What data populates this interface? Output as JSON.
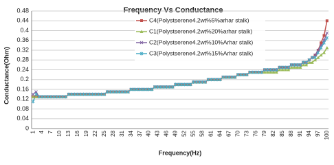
{
  "chart_data": {
    "type": "line",
    "title": "Frequency Vs Conductance",
    "x_label": "Frequency(Hz)",
    "y_label": "Conductance(Ohm)",
    "categories": [
      1,
      null,
      null,
      4,
      null,
      null,
      7,
      null,
      null,
      10,
      null,
      null,
      13,
      null,
      null,
      16,
      null,
      null,
      19,
      null,
      null,
      22,
      null,
      null,
      25,
      null,
      null,
      28,
      null,
      null,
      31,
      null,
      null,
      34,
      null,
      null,
      37,
      null,
      null,
      40,
      null,
      null,
      43,
      null,
      null,
      46,
      null,
      null,
      49,
      null,
      null,
      52,
      null,
      null,
      55,
      null,
      null,
      58,
      null,
      null,
      61,
      null,
      null,
      64,
      null,
      null,
      67,
      null,
      null,
      70,
      null,
      null,
      73,
      null,
      null,
      76,
      null,
      null,
      79,
      null,
      null,
      82,
      null,
      null,
      85,
      null,
      null,
      88,
      null,
      null,
      91,
      null,
      null,
      94,
      null,
      null,
      97,
      null,
      null,
      100
    ],
    "ylim": [
      0,
      0.48
    ],
    "yticks": [
      0,
      0.04,
      0.08,
      0.12,
      0.16,
      0.2,
      0.24,
      0.28,
      0.32,
      0.36,
      0.4,
      0.44,
      0.48
    ],
    "grid": true,
    "series": [
      {
        "name": "C4(Polystserene4.2wt%5%arhar stalk)",
        "color": "#c0504d",
        "marker": "square",
        "values": [
          0.13,
          0.13,
          0.13,
          0.13,
          0.13,
          0.13,
          0.13,
          0.13,
          0.13,
          0.13,
          0.13,
          0.13,
          0.14,
          0.14,
          0.14,
          0.14,
          0.14,
          0.14,
          0.14,
          0.14,
          0.14,
          0.14,
          0.14,
          0.14,
          0.14,
          0.15,
          0.15,
          0.15,
          0.15,
          0.15,
          0.15,
          0.15,
          0.15,
          0.16,
          0.16,
          0.16,
          0.16,
          0.16,
          0.16,
          0.16,
          0.16,
          0.17,
          0.17,
          0.17,
          0.17,
          0.17,
          0.17,
          0.17,
          0.18,
          0.18,
          0.18,
          0.18,
          0.18,
          0.18,
          0.19,
          0.19,
          0.19,
          0.19,
          0.19,
          0.2,
          0.2,
          0.2,
          0.2,
          0.2,
          0.21,
          0.21,
          0.21,
          0.21,
          0.21,
          0.22,
          0.22,
          0.22,
          0.22,
          0.23,
          0.23,
          0.23,
          0.23,
          0.23,
          0.24,
          0.24,
          0.24,
          0.24,
          0.24,
          0.25,
          0.25,
          0.25,
          0.25,
          0.26,
          0.26,
          0.26,
          0.26,
          0.27,
          0.27,
          0.28,
          0.29,
          0.3,
          0.32,
          0.35,
          0.38,
          0.44
        ]
      },
      {
        "name": "C1(Polystserene4.2wt%20%arhar stalk)",
        "color": "#9bbb59",
        "marker": "triangle",
        "values": [
          0.13,
          0.13,
          0.13,
          0.13,
          0.13,
          0.13,
          0.13,
          0.13,
          0.13,
          0.13,
          0.13,
          0.13,
          0.14,
          0.14,
          0.14,
          0.14,
          0.14,
          0.14,
          0.14,
          0.14,
          0.14,
          0.14,
          0.14,
          0.14,
          0.14,
          0.15,
          0.15,
          0.15,
          0.15,
          0.15,
          0.15,
          0.15,
          0.15,
          0.16,
          0.16,
          0.16,
          0.16,
          0.16,
          0.16,
          0.16,
          0.16,
          0.17,
          0.17,
          0.17,
          0.17,
          0.17,
          0.17,
          0.17,
          0.18,
          0.18,
          0.18,
          0.18,
          0.18,
          0.18,
          0.19,
          0.19,
          0.19,
          0.19,
          0.19,
          0.2,
          0.2,
          0.2,
          0.2,
          0.2,
          0.21,
          0.21,
          0.21,
          0.21,
          0.21,
          0.22,
          0.22,
          0.22,
          0.22,
          0.23,
          0.23,
          0.23,
          0.23,
          0.23,
          0.23,
          0.23,
          0.23,
          0.23,
          0.23,
          0.24,
          0.24,
          0.24,
          0.24,
          0.25,
          0.25,
          0.25,
          0.25,
          0.26,
          0.26,
          0.27,
          0.27,
          0.28,
          0.29,
          0.3,
          0.31,
          0.33
        ]
      },
      {
        "name": "C2(Polystserene4.2wt%10%Arhar stalk)",
        "color": "#8064a2",
        "marker": "cross",
        "values": [
          0.14,
          0.15,
          0.13,
          0.13,
          0.13,
          0.13,
          0.13,
          0.13,
          0.13,
          0.13,
          0.13,
          0.13,
          0.14,
          0.14,
          0.14,
          0.14,
          0.14,
          0.14,
          0.14,
          0.14,
          0.14,
          0.14,
          0.14,
          0.14,
          0.14,
          0.15,
          0.15,
          0.15,
          0.15,
          0.15,
          0.15,
          0.15,
          0.15,
          0.16,
          0.16,
          0.16,
          0.16,
          0.16,
          0.16,
          0.16,
          0.16,
          0.17,
          0.17,
          0.17,
          0.17,
          0.17,
          0.17,
          0.17,
          0.18,
          0.18,
          0.18,
          0.18,
          0.18,
          0.18,
          0.19,
          0.19,
          0.19,
          0.19,
          0.19,
          0.2,
          0.2,
          0.2,
          0.2,
          0.2,
          0.21,
          0.21,
          0.21,
          0.21,
          0.21,
          0.22,
          0.22,
          0.22,
          0.22,
          0.23,
          0.23,
          0.23,
          0.23,
          0.23,
          0.24,
          0.24,
          0.24,
          0.24,
          0.24,
          0.25,
          0.25,
          0.25,
          0.25,
          0.26,
          0.26,
          0.26,
          0.26,
          0.27,
          0.27,
          0.28,
          0.29,
          0.3,
          0.32,
          0.34,
          0.36,
          0.39
        ]
      },
      {
        "name": "C3(Polystserene4.2wt%15%Arhar stalk)",
        "color": "#4bacc6",
        "marker": "star",
        "values": [
          0.11,
          0.14,
          0.13,
          0.13,
          0.13,
          0.13,
          0.13,
          0.13,
          0.13,
          0.13,
          0.13,
          0.13,
          0.14,
          0.14,
          0.14,
          0.14,
          0.14,
          0.14,
          0.14,
          0.14,
          0.14,
          0.14,
          0.14,
          0.14,
          0.14,
          0.15,
          0.15,
          0.15,
          0.15,
          0.15,
          0.15,
          0.15,
          0.15,
          0.16,
          0.16,
          0.16,
          0.16,
          0.16,
          0.16,
          0.16,
          0.16,
          0.17,
          0.17,
          0.17,
          0.17,
          0.17,
          0.17,
          0.17,
          0.18,
          0.18,
          0.18,
          0.18,
          0.18,
          0.18,
          0.19,
          0.19,
          0.19,
          0.19,
          0.19,
          0.2,
          0.2,
          0.2,
          0.2,
          0.2,
          0.21,
          0.21,
          0.21,
          0.21,
          0.21,
          0.22,
          0.22,
          0.22,
          0.22,
          0.23,
          0.23,
          0.23,
          0.23,
          0.23,
          0.24,
          0.24,
          0.24,
          0.24,
          0.24,
          0.25,
          0.25,
          0.25,
          0.25,
          0.26,
          0.26,
          0.26,
          0.26,
          0.27,
          0.27,
          0.28,
          0.29,
          0.29,
          0.31,
          0.33,
          0.35,
          0.37
        ]
      }
    ]
  }
}
